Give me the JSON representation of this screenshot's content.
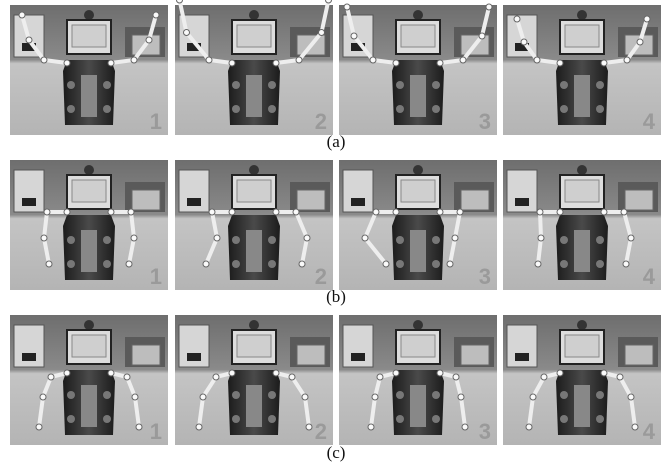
{
  "rows": [
    {
      "caption": "(a)",
      "frames": [
        "1",
        "2",
        "3",
        "4"
      ]
    },
    {
      "caption": "(b)",
      "frames": [
        "1",
        "2",
        "3",
        "4"
      ]
    },
    {
      "caption": "(c)",
      "frames": [
        "1",
        "2",
        "3",
        "4"
      ]
    }
  ]
}
